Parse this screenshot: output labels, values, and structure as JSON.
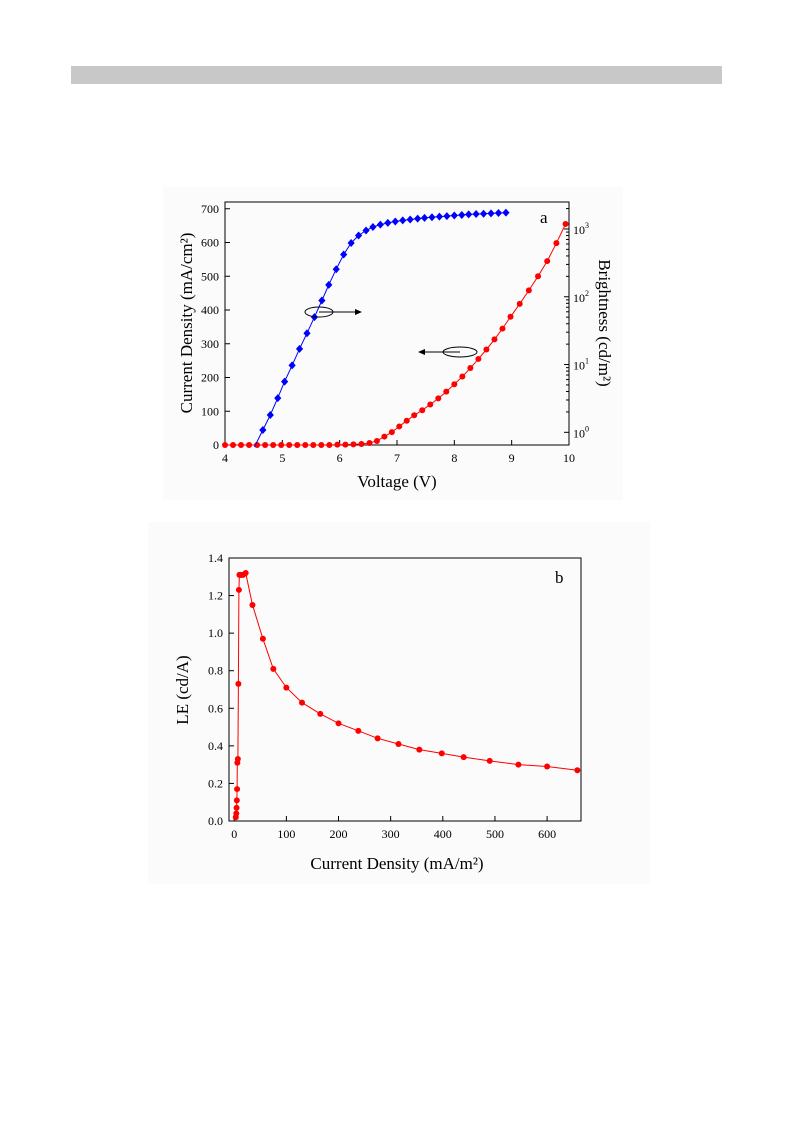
{
  "chart_data": [
    {
      "panel": "a",
      "type": "line",
      "xlabel": "Voltage (V)",
      "ylabel": "Current Density (mA/cm²)",
      "y2label": "Brightness (cd/m²)",
      "xlim": [
        4,
        10
      ],
      "ylim": [
        0,
        720
      ],
      "y2lim": [
        0.65,
        2500
      ],
      "y2scale": "log",
      "xticks": [
        "4",
        "5",
        "6",
        "7",
        "8",
        "9",
        "10"
      ],
      "yticks": [
        "0",
        "100",
        "200",
        "300",
        "400",
        "500",
        "600",
        "700"
      ],
      "y2ticks": [
        {
          "value": 1,
          "label": "10",
          "exp": "0"
        },
        {
          "value": 10,
          "label": "10",
          "exp": "1"
        },
        {
          "value": 100,
          "label": "10",
          "exp": "2"
        },
        {
          "value": 1000,
          "label": "10",
          "exp": "3"
        }
      ],
      "grid": false,
      "series": [
        {
          "axis": "left",
          "color": "#ff0000",
          "marker": "circle",
          "x": [
            4.0,
            4.14,
            4.28,
            4.42,
            4.56,
            4.7,
            4.84,
            4.98,
            5.12,
            5.26,
            5.4,
            5.54,
            5.68,
            5.82,
            5.96,
            6.1,
            6.24,
            6.38,
            6.52,
            6.65,
            6.78,
            6.91,
            7.04,
            7.17,
            7.3,
            7.44,
            7.58,
            7.72,
            7.86,
            8.0,
            8.14,
            8.28,
            8.42,
            8.56,
            8.7,
            8.84,
            8.98,
            9.14,
            9.3,
            9.46,
            9.62,
            9.78,
            9.94
          ],
          "y": [
            0,
            0,
            0,
            0,
            0,
            0,
            0,
            0,
            0,
            0,
            0,
            0,
            0,
            0,
            1,
            1,
            2,
            3,
            6,
            12,
            25,
            38,
            55,
            72,
            88,
            103,
            120,
            138,
            158,
            180,
            203,
            228,
            255,
            283,
            313,
            345,
            380,
            418,
            458,
            500,
            545,
            598,
            655
          ]
        },
        {
          "axis": "right",
          "color": "#0000ff",
          "marker": "diamond",
          "x": [
            4.66,
            4.79,
            4.92,
            5.04,
            5.17,
            5.3,
            5.43,
            5.56,
            5.69,
            5.81,
            5.94,
            6.07,
            6.2,
            6.33,
            6.46,
            6.58,
            6.71,
            6.84,
            6.97,
            7.1,
            7.23,
            7.36,
            7.48,
            7.61,
            7.74,
            7.87,
            8.0,
            8.13,
            8.25,
            8.38,
            8.51,
            8.64,
            8.77,
            8.9
          ],
          "y": [
            1.08,
            1.8,
            3.2,
            5.6,
            9.7,
            17,
            29,
            50,
            88,
            150,
            255,
            420,
            620,
            800,
            950,
            1070,
            1160,
            1230,
            1290,
            1340,
            1380,
            1420,
            1460,
            1490,
            1520,
            1550,
            1580,
            1610,
            1640,
            1660,
            1680,
            1700,
            1720,
            1740
          ]
        }
      ]
    },
    {
      "panel": "b",
      "type": "line",
      "xlabel": "Current Density (mA/m²)",
      "ylabel": "LE (cd/A)",
      "xlim": [
        -10,
        665
      ],
      "ylim": [
        0,
        1.4
      ],
      "xticks": [
        "0",
        "100",
        "200",
        "300",
        "400",
        "500",
        "600"
      ],
      "yticks": [
        "0.0",
        "0.2",
        "0.4",
        "0.6",
        "0.8",
        "1.0",
        "1.2",
        "1.4"
      ],
      "grid": false,
      "series": [
        {
          "color": "#ff0000",
          "marker": "circle",
          "x": [
            3,
            4,
            4.5,
            5,
            5.5,
            6,
            7,
            8,
            9,
            10,
            12,
            14,
            17,
            22,
            35,
            55,
            75,
            100,
            130,
            165,
            200,
            238,
            275,
            315,
            355,
            398,
            440,
            490,
            545,
            600,
            658
          ],
          "y": [
            0.02,
            0.04,
            0.07,
            0.11,
            0.17,
            0.31,
            0.33,
            0.73,
            1.23,
            1.31,
            1.31,
            1.31,
            1.31,
            1.32,
            1.15,
            0.97,
            0.81,
            0.71,
            0.63,
            0.57,
            0.52,
            0.48,
            0.44,
            0.41,
            0.38,
            0.36,
            0.34,
            0.32,
            0.3,
            0.29,
            0.27
          ]
        }
      ]
    }
  ]
}
